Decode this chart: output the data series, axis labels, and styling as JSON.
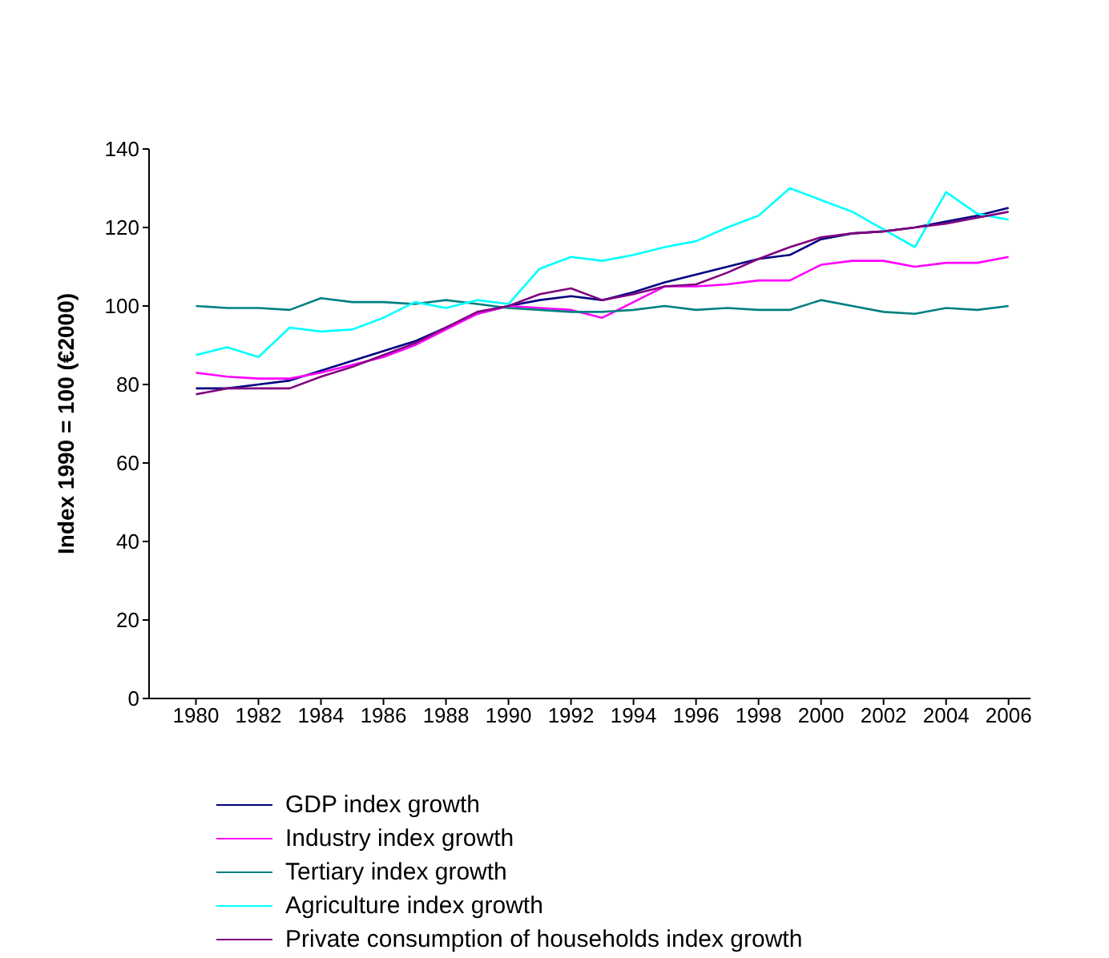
{
  "chart_data": {
    "type": "line",
    "ylabel": "Index 1990 = 100 (€2000)",
    "x": [
      1980,
      1981,
      1982,
      1983,
      1984,
      1985,
      1986,
      1987,
      1988,
      1989,
      1990,
      1991,
      1992,
      1993,
      1994,
      1995,
      1996,
      1997,
      1998,
      1999,
      2000,
      2001,
      2002,
      2003,
      2004,
      2005,
      2006
    ],
    "xlim": [
      1978.5,
      2006.7
    ],
    "xticks": [
      1980,
      1982,
      1984,
      1986,
      1988,
      1990,
      1992,
      1994,
      1996,
      1998,
      2000,
      2002,
      2004,
      2006
    ],
    "ylim": [
      0,
      140
    ],
    "yticks": [
      0,
      20,
      40,
      60,
      80,
      100,
      120,
      140
    ],
    "grid": false,
    "legend": "bottom",
    "marker": "none",
    "line_style": "solid",
    "series": [
      {
        "name": "GDP  index growth",
        "color": "#000080",
        "values": [
          79,
          79,
          80,
          81,
          83.5,
          86,
          88.5,
          91,
          94.5,
          98,
          100,
          101.5,
          102.5,
          101.5,
          103.5,
          106,
          108,
          110,
          112,
          113,
          117,
          118.5,
          119,
          120,
          121.5,
          123,
          125
        ]
      },
      {
        "name": "Industry index growth",
        "color": "#ff00ff",
        "values": [
          83,
          82,
          81.5,
          81.5,
          83,
          85,
          87,
          90,
          94,
          98,
          100,
          99.5,
          99,
          97,
          101,
          105,
          105,
          105.5,
          106.5,
          106.5,
          110.5,
          111.5,
          111.5,
          110,
          111,
          111,
          112.5
        ]
      },
      {
        "name": "Tertiary index growth",
        "color": "#008080",
        "values": [
          100,
          99.5,
          99.5,
          99,
          102,
          101,
          101,
          100.5,
          101.5,
          100.5,
          99.5,
          99,
          98.5,
          98.5,
          99,
          100,
          99,
          99.5,
          99,
          99,
          101.5,
          100,
          98.5,
          98,
          99.5,
          99,
          100
        ]
      },
      {
        "name": "Agriculture index growth",
        "color": "#00ffff",
        "values": [
          87.5,
          89.5,
          87,
          94.5,
          93.5,
          94,
          97,
          101,
          99.5,
          101.5,
          100.5,
          109.5,
          112.5,
          111.5,
          113,
          115,
          116.5,
          120,
          123,
          130,
          127,
          124,
          119.5,
          115,
          129,
          123.5,
          122
        ]
      },
      {
        "name": "Private consumption of households index growth",
        "color": "#800080",
        "values": [
          77.5,
          79,
          79,
          79,
          82,
          84.5,
          87.5,
          90.5,
          94.5,
          98.5,
          100,
          103,
          104.5,
          101.5,
          103,
          105,
          105.5,
          108.5,
          112,
          115,
          117.5,
          118.5,
          119,
          120,
          121,
          122.5,
          124
        ]
      }
    ]
  }
}
